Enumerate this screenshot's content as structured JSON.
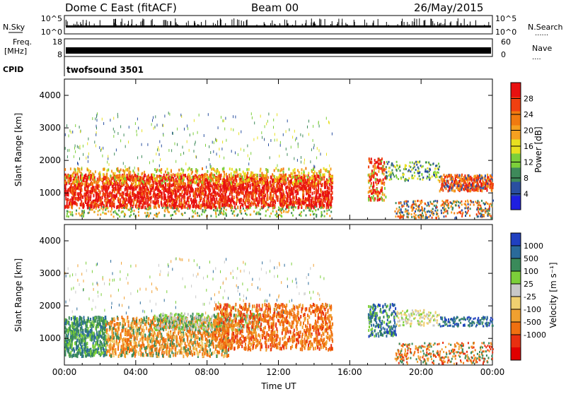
{
  "header": {
    "title": "Dome C East (fitACF)",
    "beam": "Beam 00",
    "date": "26/May/2015"
  },
  "nsky_panel": {
    "left_label": "N.Sky",
    "left_ticks": [
      "10^5",
      "10^0"
    ],
    "right_ticks": [
      "10^5",
      "10^0"
    ],
    "right_label": "N.Search",
    "right_marker": "......"
  },
  "freq_panel": {
    "left_label_1": "Freq.",
    "left_label_2": "[MHz]",
    "left_ticks": [
      "18",
      "8"
    ],
    "right_ticks": [
      "60",
      "0"
    ],
    "right_label": "Nave",
    "right_marker": "...."
  },
  "cpid_panel": {
    "label": "CPID",
    "program": "twofsound 3501"
  },
  "colors": {
    "power_scale": [
      "#1f1fe0",
      "#2a4fa0",
      "#3e8a5a",
      "#7ccf3a",
      "#e8e020",
      "#f5a020",
      "#f07a10",
      "#f04010",
      "#e81010"
    ],
    "velocity_scale": [
      "#2040c0",
      "#2a6a9a",
      "#3a8a5a",
      "#7ccf3a",
      "#c8c8c8",
      "#f0d070",
      "#f0a030",
      "#f07010",
      "#e83010",
      "#e00000"
    ]
  },
  "chart_data": [
    {
      "type": "heatmap",
      "title": "",
      "xlabel": "",
      "ylabel": "Slant Range [km]",
      "x_ticks": [
        "00:00",
        "04:00",
        "08:00",
        "12:00",
        "16:00",
        "20:00",
        "00:00"
      ],
      "x_range_hours": [
        0,
        24
      ],
      "ylim": [
        180,
        4500
      ],
      "y_ticks": [
        1000,
        2000,
        3000,
        4000
      ],
      "colorbar": {
        "label": "Power [dB]",
        "range": [
          0,
          32
        ],
        "ticks": [
          4,
          8,
          12,
          16,
          20,
          24,
          28
        ]
      }
    },
    {
      "type": "heatmap",
      "title": "",
      "xlabel": "Time UT",
      "ylabel": "Slant Range [km]",
      "x_ticks": [
        "00:00",
        "04:00",
        "08:00",
        "12:00",
        "16:00",
        "20:00",
        "00:00"
      ],
      "x_range_hours": [
        0,
        24
      ],
      "ylim": [
        180,
        4500
      ],
      "y_ticks": [
        1000,
        2000,
        3000,
        4000
      ],
      "colorbar": {
        "label": "Velocity [m s⁻¹]",
        "ticks": [
          "1000",
          "500",
          "100",
          "25",
          "-25",
          "-100",
          "-500",
          "-1000"
        ]
      }
    }
  ]
}
